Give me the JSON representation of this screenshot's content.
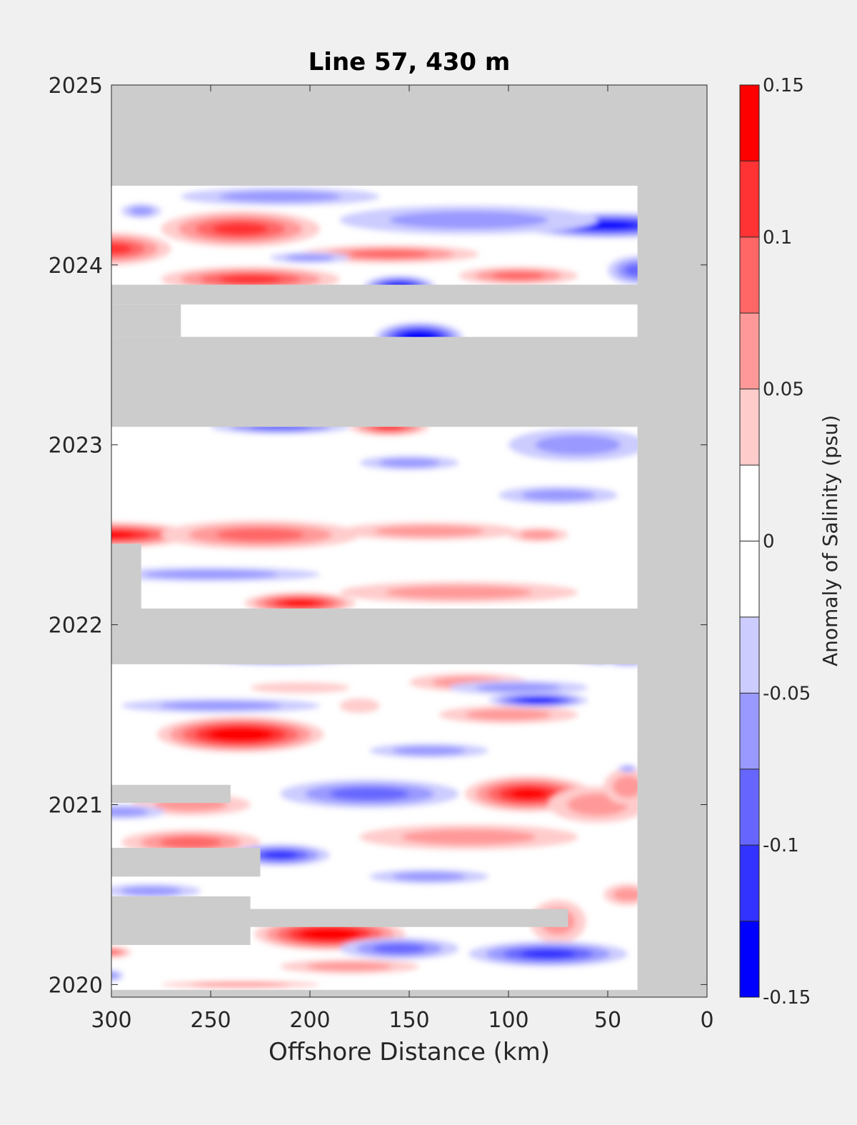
{
  "chart_data": {
    "type": "heatmap",
    "title": "Line 57, 430 m",
    "xlabel": "Offshore Distance (km)",
    "ylabel": "",
    "xlim": [
      300,
      0
    ],
    "ylim": [
      2019.93,
      2025
    ],
    "x_reversed": true,
    "x_ticks": [
      300,
      250,
      200,
      150,
      100,
      50,
      0
    ],
    "y_ticks": [
      2020,
      2021,
      2022,
      2023,
      2024,
      2025
    ],
    "grid": false,
    "colorbar": {
      "label": "Anomaly of Salinity (psu)",
      "limits": [
        -0.15,
        0.15
      ],
      "ticks": [
        0.15,
        0.1,
        0.05,
        0,
        -0.05,
        -0.1,
        -0.15
      ],
      "tick_labels": [
        "0.15",
        "0.1",
        "0.05",
        "0",
        "-0.05",
        "-0.1",
        "-0.15"
      ],
      "levels": [
        {
          "lo": 0.125,
          "hi": 0.15,
          "color": "#ff0000"
        },
        {
          "lo": 0.1,
          "hi": 0.125,
          "color": "#ff3333"
        },
        {
          "lo": 0.075,
          "hi": 0.1,
          "color": "#ff6666"
        },
        {
          "lo": 0.05,
          "hi": 0.075,
          "color": "#ff9999"
        },
        {
          "lo": 0.025,
          "hi": 0.05,
          "color": "#ffcccc"
        },
        {
          "lo": 0.0,
          "hi": 0.025,
          "color": "#ffffff"
        },
        {
          "lo": -0.025,
          "hi": 0.0,
          "color": "#ffffff"
        },
        {
          "lo": -0.05,
          "hi": -0.025,
          "color": "#ccccff"
        },
        {
          "lo": -0.075,
          "hi": -0.05,
          "color": "#9999ff"
        },
        {
          "lo": -0.1,
          "hi": -0.075,
          "color": "#6666ff"
        },
        {
          "lo": -0.125,
          "hi": -0.1,
          "color": "#3333ff"
        },
        {
          "lo": -0.15,
          "hi": -0.125,
          "color": "#0000ff"
        }
      ]
    },
    "no_data_color": "#cccccc",
    "data_extent": {
      "x": [
        35,
        300
      ],
      "y": [
        2019.97,
        2024.44
      ]
    },
    "no_data_bands": [
      {
        "x": [
          35,
          300
        ],
        "y": [
          2023.1,
          2023.6
        ]
      },
      {
        "x": [
          35,
          300
        ],
        "y": [
          2021.78,
          2022.09
        ]
      },
      {
        "x": [
          35,
          300
        ],
        "y": [
          2023.78,
          2023.89
        ]
      },
      {
        "x": [
          265,
          300
        ],
        "y": [
          2023.6,
          2023.78
        ]
      },
      {
        "x": [
          70,
          300
        ],
        "y": [
          2020.32,
          2020.42
        ]
      },
      {
        "x": [
          230,
          300
        ],
        "y": [
          2020.22,
          2020.49
        ]
      },
      {
        "x": [
          240,
          300
        ],
        "y": [
          2021.01,
          2021.11
        ]
      },
      {
        "x": [
          225,
          300
        ],
        "y": [
          2020.6,
          2020.76
        ]
      },
      {
        "x": [
          285,
          300
        ],
        "y": [
          2022.09,
          2022.45
        ]
      }
    ],
    "anomaly_features": [
      {
        "x": 235,
        "y": 2021.39,
        "rx": 42,
        "ry": 0.1,
        "value": 0.15
      },
      {
        "x": 190,
        "y": 2020.28,
        "rx": 38,
        "ry": 0.09,
        "value": 0.14
      },
      {
        "x": 205,
        "y": 2022.12,
        "rx": 28,
        "ry": 0.06,
        "value": 0.13
      },
      {
        "x": 300,
        "y": 2022.5,
        "rx": 42,
        "ry": 0.07,
        "value": 0.12
      },
      {
        "x": 235,
        "y": 2024.2,
        "rx": 40,
        "ry": 0.1,
        "value": 0.1
      },
      {
        "x": 300,
        "y": 2024.09,
        "rx": 30,
        "ry": 0.09,
        "value": 0.09
      },
      {
        "x": 230,
        "y": 2023.92,
        "rx": 45,
        "ry": 0.07,
        "value": 0.09
      },
      {
        "x": 160,
        "y": 2023.1,
        "rx": 20,
        "ry": 0.05,
        "value": 0.09
      },
      {
        "x": 90,
        "y": 2021.06,
        "rx": 32,
        "ry": 0.1,
        "value": 0.12
      },
      {
        "x": 160,
        "y": 2024.06,
        "rx": 45,
        "ry": 0.05,
        "value": 0.07
      },
      {
        "x": 95,
        "y": 2023.94,
        "rx": 30,
        "ry": 0.05,
        "value": 0.07
      },
      {
        "x": 225,
        "y": 2022.5,
        "rx": 50,
        "ry": 0.08,
        "value": 0.07
      },
      {
        "x": 260,
        "y": 2020.79,
        "rx": 35,
        "ry": 0.07,
        "value": 0.07
      },
      {
        "x": 120,
        "y": 2020.82,
        "rx": 55,
        "ry": 0.07,
        "value": 0.06
      },
      {
        "x": 100,
        "y": 2021.5,
        "rx": 35,
        "ry": 0.05,
        "value": 0.06
      },
      {
        "x": 260,
        "y": 2021.0,
        "rx": 30,
        "ry": 0.06,
        "value": 0.06
      },
      {
        "x": 75,
        "y": 2020.35,
        "rx": 14,
        "ry": 0.12,
        "value": 0.06
      },
      {
        "x": 55,
        "y": 2021.0,
        "rx": 25,
        "ry": 0.1,
        "value": 0.05
      },
      {
        "x": 140,
        "y": 2022.52,
        "rx": 45,
        "ry": 0.05,
        "value": 0.04
      },
      {
        "x": 125,
        "y": 2022.18,
        "rx": 60,
        "ry": 0.06,
        "value": 0.04
      },
      {
        "x": 85,
        "y": 2022.5,
        "rx": 15,
        "ry": 0.04,
        "value": 0.04
      },
      {
        "x": 120,
        "y": 2021.68,
        "rx": 30,
        "ry": 0.05,
        "value": 0.04
      },
      {
        "x": 40,
        "y": 2020.5,
        "rx": 12,
        "ry": 0.06,
        "value": 0.04
      },
      {
        "x": 40,
        "y": 2021.1,
        "rx": 12,
        "ry": 0.1,
        "value": 0.04
      },
      {
        "x": 180,
        "y": 2020.1,
        "rx": 35,
        "ry": 0.04,
        "value": 0.04
      },
      {
        "x": 235,
        "y": 2020.0,
        "rx": 40,
        "ry": 0.02,
        "value": 0.05
      },
      {
        "x": 300,
        "y": 2020.18,
        "rx": 10,
        "ry": 0.03,
        "value": 0.08
      },
      {
        "x": 205,
        "y": 2021.65,
        "rx": 25,
        "ry": 0.03,
        "value": 0.03
      },
      {
        "x": 175,
        "y": 2021.55,
        "rx": 10,
        "ry": 0.04,
        "value": 0.03
      },
      {
        "x": 145,
        "y": 2023.6,
        "rx": 22,
        "ry": 0.08,
        "value": -0.14
      },
      {
        "x": 155,
        "y": 2023.88,
        "rx": 18,
        "ry": 0.06,
        "value": -0.12
      },
      {
        "x": 50,
        "y": 2024.22,
        "rx": 45,
        "ry": 0.07,
        "value": -0.13
      },
      {
        "x": 85,
        "y": 2021.58,
        "rx": 25,
        "ry": 0.04,
        "value": -0.12
      },
      {
        "x": 170,
        "y": 2021.06,
        "rx": 45,
        "ry": 0.08,
        "value": -0.08
      },
      {
        "x": 80,
        "y": 2020.17,
        "rx": 40,
        "ry": 0.07,
        "value": -0.1
      },
      {
        "x": 215,
        "y": 2020.72,
        "rx": 25,
        "ry": 0.06,
        "value": -0.1
      },
      {
        "x": 215,
        "y": 2021.82,
        "rx": 45,
        "ry": 0.04,
        "value": -0.12
      },
      {
        "x": 50,
        "y": 2021.82,
        "rx": 20,
        "ry": 0.04,
        "value": -0.11
      },
      {
        "x": 35,
        "y": 2023.97,
        "rx": 15,
        "ry": 0.08,
        "value": -0.08
      },
      {
        "x": 120,
        "y": 2024.25,
        "rx": 65,
        "ry": 0.08,
        "value": -0.06
      },
      {
        "x": 215,
        "y": 2024.38,
        "rx": 50,
        "ry": 0.05,
        "value": -0.05
      },
      {
        "x": 215,
        "y": 2023.1,
        "rx": 35,
        "ry": 0.04,
        "value": -0.07
      },
      {
        "x": 65,
        "y": 2023.0,
        "rx": 35,
        "ry": 0.09,
        "value": -0.06
      },
      {
        "x": 245,
        "y": 2021.55,
        "rx": 50,
        "ry": 0.04,
        "value": -0.06
      },
      {
        "x": 250,
        "y": 2022.28,
        "rx": 55,
        "ry": 0.04,
        "value": -0.05
      },
      {
        "x": 155,
        "y": 2020.2,
        "rx": 30,
        "ry": 0.06,
        "value": -0.07
      },
      {
        "x": 280,
        "y": 2020.52,
        "rx": 25,
        "ry": 0.04,
        "value": -0.06
      },
      {
        "x": 140,
        "y": 2020.6,
        "rx": 30,
        "ry": 0.04,
        "value": -0.05
      },
      {
        "x": 295,
        "y": 2020.96,
        "rx": 22,
        "ry": 0.04,
        "value": -0.04
      },
      {
        "x": 75,
        "y": 2022.72,
        "rx": 30,
        "ry": 0.05,
        "value": -0.04
      },
      {
        "x": 150,
        "y": 2022.9,
        "rx": 25,
        "ry": 0.04,
        "value": -0.04
      },
      {
        "x": 95,
        "y": 2021.65,
        "rx": 35,
        "ry": 0.04,
        "value": -0.04
      },
      {
        "x": 285,
        "y": 2024.3,
        "rx": 10,
        "ry": 0.04,
        "value": -0.04
      },
      {
        "x": 200,
        "y": 2024.04,
        "rx": 20,
        "ry": 0.03,
        "value": -0.04
      },
      {
        "x": 300,
        "y": 2020.05,
        "rx": 6,
        "ry": 0.03,
        "value": -0.05
      },
      {
        "x": 140,
        "y": 2021.3,
        "rx": 30,
        "ry": 0.04,
        "value": -0.04
      },
      {
        "x": 40,
        "y": 2021.2,
        "rx": 5,
        "ry": 0.02,
        "value": -0.04
      },
      {
        "x": 40,
        "y": 2021.8,
        "rx": 12,
        "ry": 0.03,
        "value": -0.04
      }
    ]
  }
}
